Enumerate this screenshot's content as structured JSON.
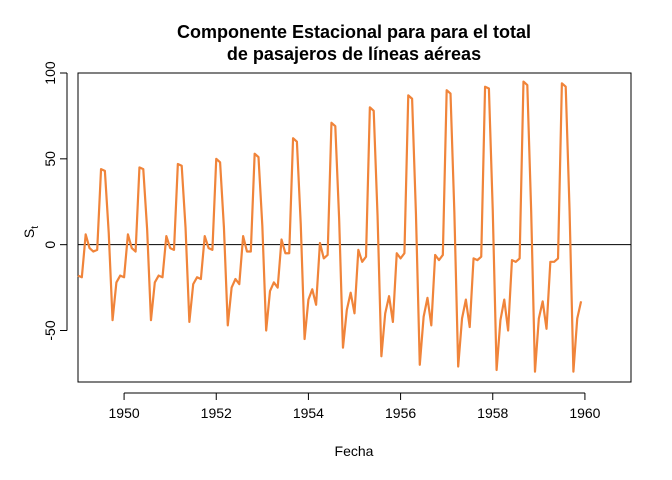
{
  "chart_data": {
    "type": "line",
    "title_lines": [
      "Componente Estacional para para el total",
      "de pasajeros de líneas aéreas"
    ],
    "xlabel": "Fecha",
    "ylabel_main": "S",
    "ylabel_sub": "t",
    "xlim": [
      1949,
      1961
    ],
    "ylim": [
      -80,
      100
    ],
    "xticks": [
      1950,
      1952,
      1954,
      1956,
      1958,
      1960
    ],
    "yticks": [
      -50,
      0,
      50,
      100
    ],
    "reference_line_y": 0,
    "grid": false,
    "line_color": "#F0843A",
    "ref_color": "#000000",
    "series": [
      {
        "x_start": 1949,
        "freq": 12,
        "values": [
          -18,
          -19,
          6,
          -2,
          -4,
          -3,
          44,
          43,
          7,
          -44,
          -22,
          -18,
          -19,
          6,
          -2,
          -4,
          45,
          44,
          9,
          -44,
          -22,
          -18,
          -19,
          5,
          -2,
          -3,
          47,
          46,
          10,
          -45,
          -23,
          -19,
          -20,
          5,
          -2,
          -3,
          50,
          48,
          10,
          -47,
          -25,
          -20,
          -23,
          5,
          -4,
          -4,
          53,
          51,
          11,
          -50,
          -27,
          -22,
          -25,
          3,
          -5,
          -5,
          62,
          60,
          12,
          -55,
          -32,
          -26,
          -35,
          1,
          -8,
          -6,
          71,
          69,
          15,
          -60,
          -38,
          -28,
          -40,
          -3,
          -10,
          -7,
          80,
          78,
          17,
          -65,
          -40,
          -30,
          -45,
          -5,
          -8,
          -5,
          87,
          85,
          18,
          -70,
          -42,
          -31,
          -47,
          -6,
          -9,
          -6,
          90,
          88,
          19,
          -71,
          -43,
          -32,
          -48,
          -8,
          -9,
          -7,
          92,
          91,
          20,
          -73,
          -44,
          -32,
          -50,
          -9,
          -10,
          -8,
          95,
          93,
          20,
          -74,
          -43,
          -33,
          -49,
          -10,
          -10,
          -8,
          94,
          92,
          20,
          -74,
          -43,
          -33
        ]
      }
    ]
  }
}
